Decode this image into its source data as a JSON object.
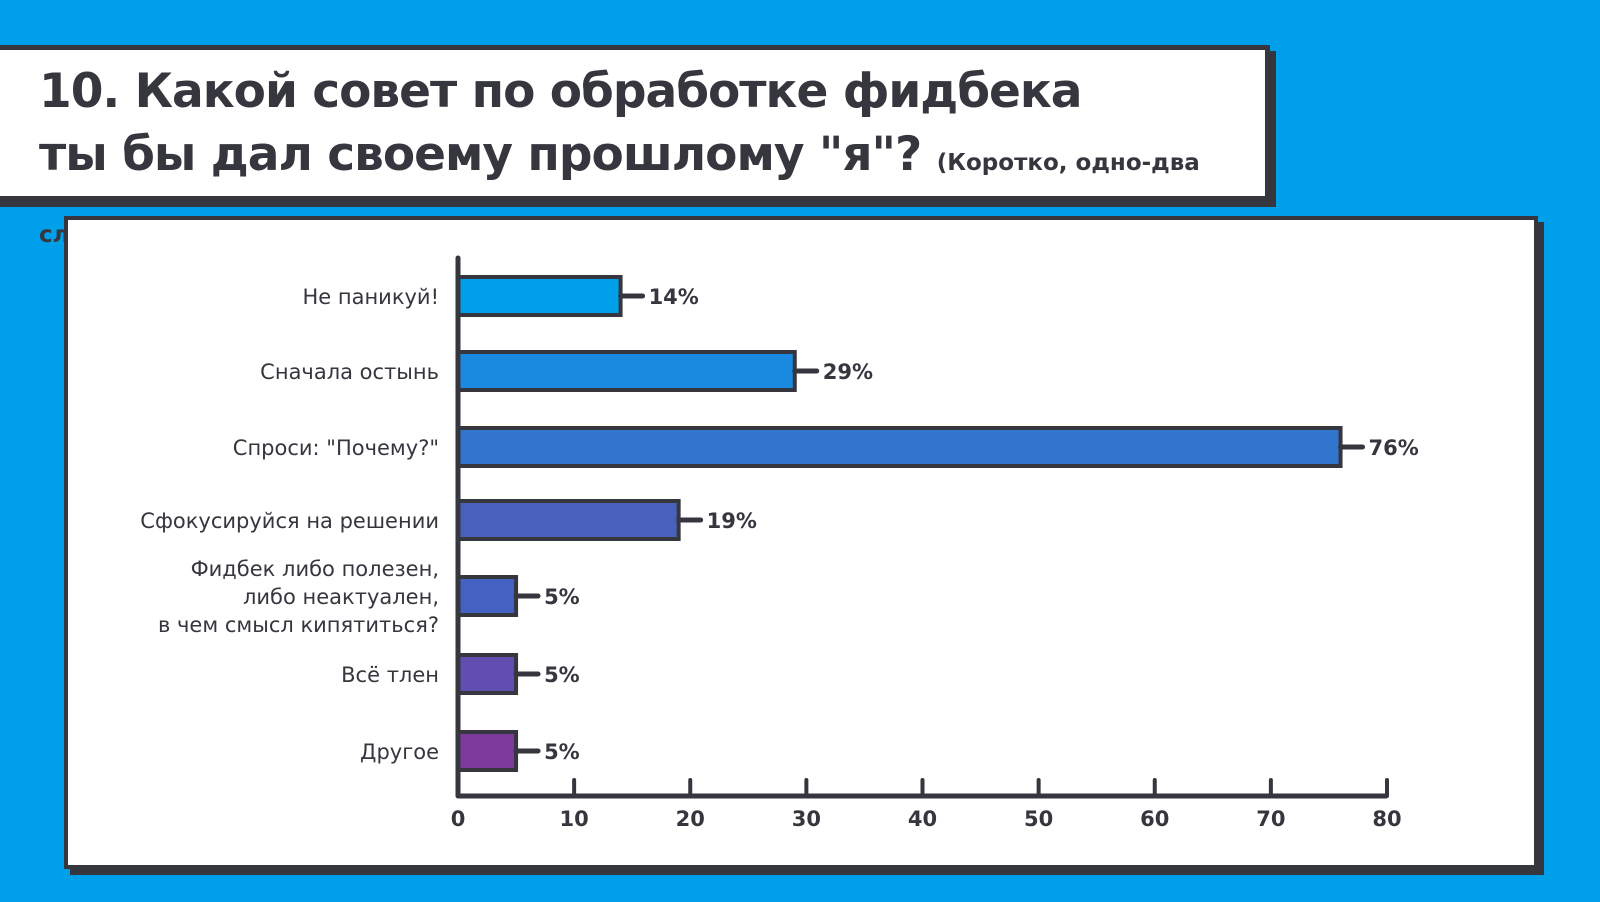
{
  "title": {
    "line1": "10. Какой совет по обработке фидбека",
    "line2": "ты бы дал своему прошлому \"я\"?",
    "subtitle": "(Коротко, одно-два слова)"
  },
  "colors": {
    "background": "#009fea",
    "border": "#36363e"
  },
  "chart_data": {
    "type": "bar",
    "orientation": "horizontal",
    "categories": [
      [
        "Не паникуй!"
      ],
      [
        "Сначала остынь"
      ],
      [
        "Спроси: \"Почему?\""
      ],
      [
        "Сфокусируйся на решении"
      ],
      [
        "Фидбек либо полезен,",
        "либо неактуален,",
        "в чем смысл кипятиться?"
      ],
      [
        "Всё тлен"
      ],
      [
        "Другое"
      ]
    ],
    "values": [
      14,
      29,
      76,
      19,
      5,
      5,
      5
    ],
    "labels": [
      "14%",
      "29%",
      "76%",
      "19%",
      "5%",
      "5%",
      "5%"
    ],
    "colors": [
      "#009fea",
      "#1a8ae0",
      "#3176cc",
      "#4862bc",
      "#4462c2",
      "#604fb0",
      "#7b3a9c"
    ],
    "xlim": [
      0,
      80
    ],
    "xticks": [
      0,
      10,
      20,
      30,
      40,
      50,
      60,
      70,
      80
    ],
    "grid": false,
    "legend": "none"
  }
}
